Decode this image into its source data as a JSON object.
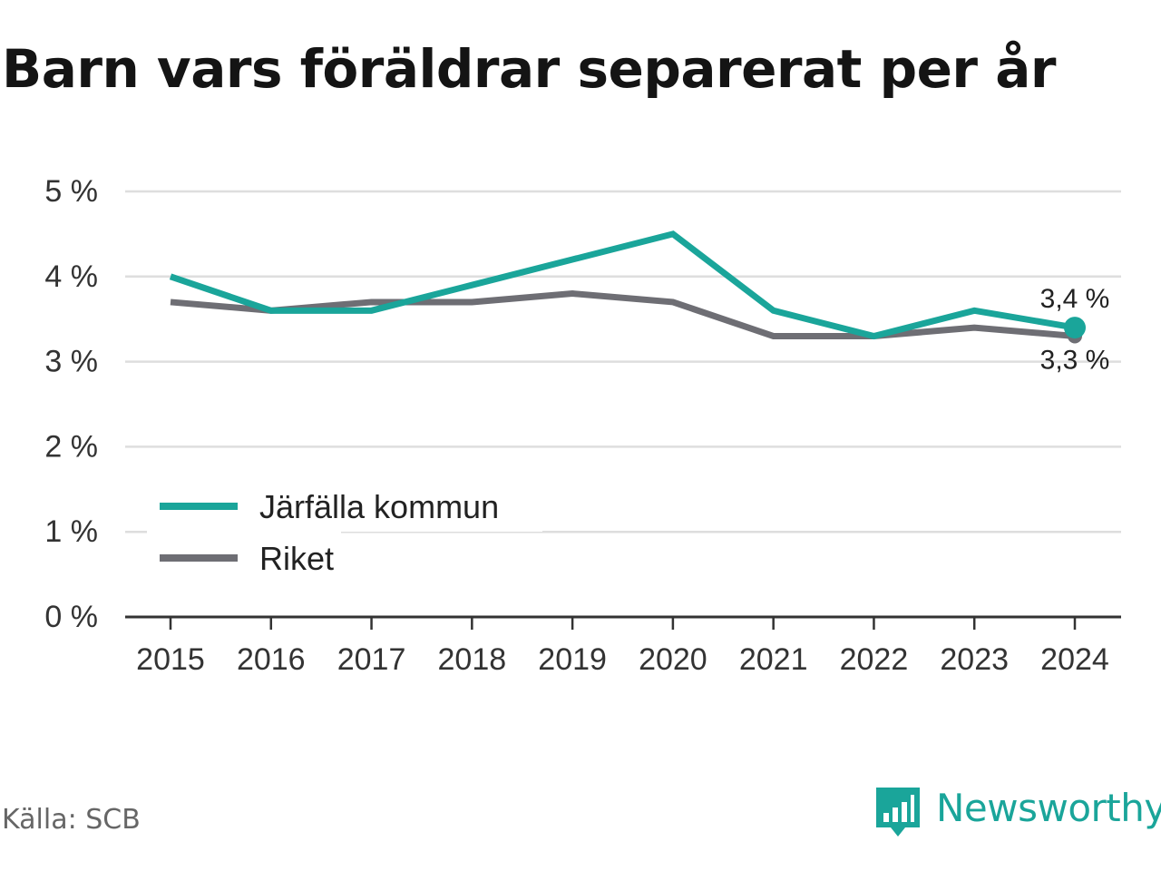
{
  "title": "Barn vars föräldrar separerat per år",
  "source": "Källa: SCB",
  "brand": {
    "name": "Newsworthy",
    "icon": "newsworthy-logo-icon",
    "color": "#1aa59a"
  },
  "chart_data": {
    "type": "line",
    "title": "Barn vars föräldrar separerat per år",
    "categories": [
      "2015",
      "2016",
      "2017",
      "2018",
      "2019",
      "2020",
      "2021",
      "2022",
      "2023",
      "2024"
    ],
    "series": [
      {
        "name": "Järfälla kommun",
        "color": "#1aa59a",
        "values": [
          4.0,
          3.6,
          3.6,
          3.9,
          4.2,
          4.5,
          3.6,
          3.3,
          3.6,
          3.4
        ],
        "end_label": "3,4 %"
      },
      {
        "name": "Riket",
        "color": "#6e6e74",
        "values": [
          3.7,
          3.6,
          3.7,
          3.7,
          3.8,
          3.7,
          3.3,
          3.3,
          3.4,
          3.3
        ],
        "end_label": "3,3 %"
      }
    ],
    "ylim": [
      0,
      5
    ],
    "y_ticks": [
      0,
      1,
      2,
      3,
      4,
      5
    ],
    "y_tick_labels": [
      "0 %",
      "1 %",
      "2 %",
      "3 %",
      "4 %",
      "5 %"
    ],
    "xlabel": "",
    "ylabel": "",
    "grid": true,
    "legend_placement": "bottom-left"
  }
}
